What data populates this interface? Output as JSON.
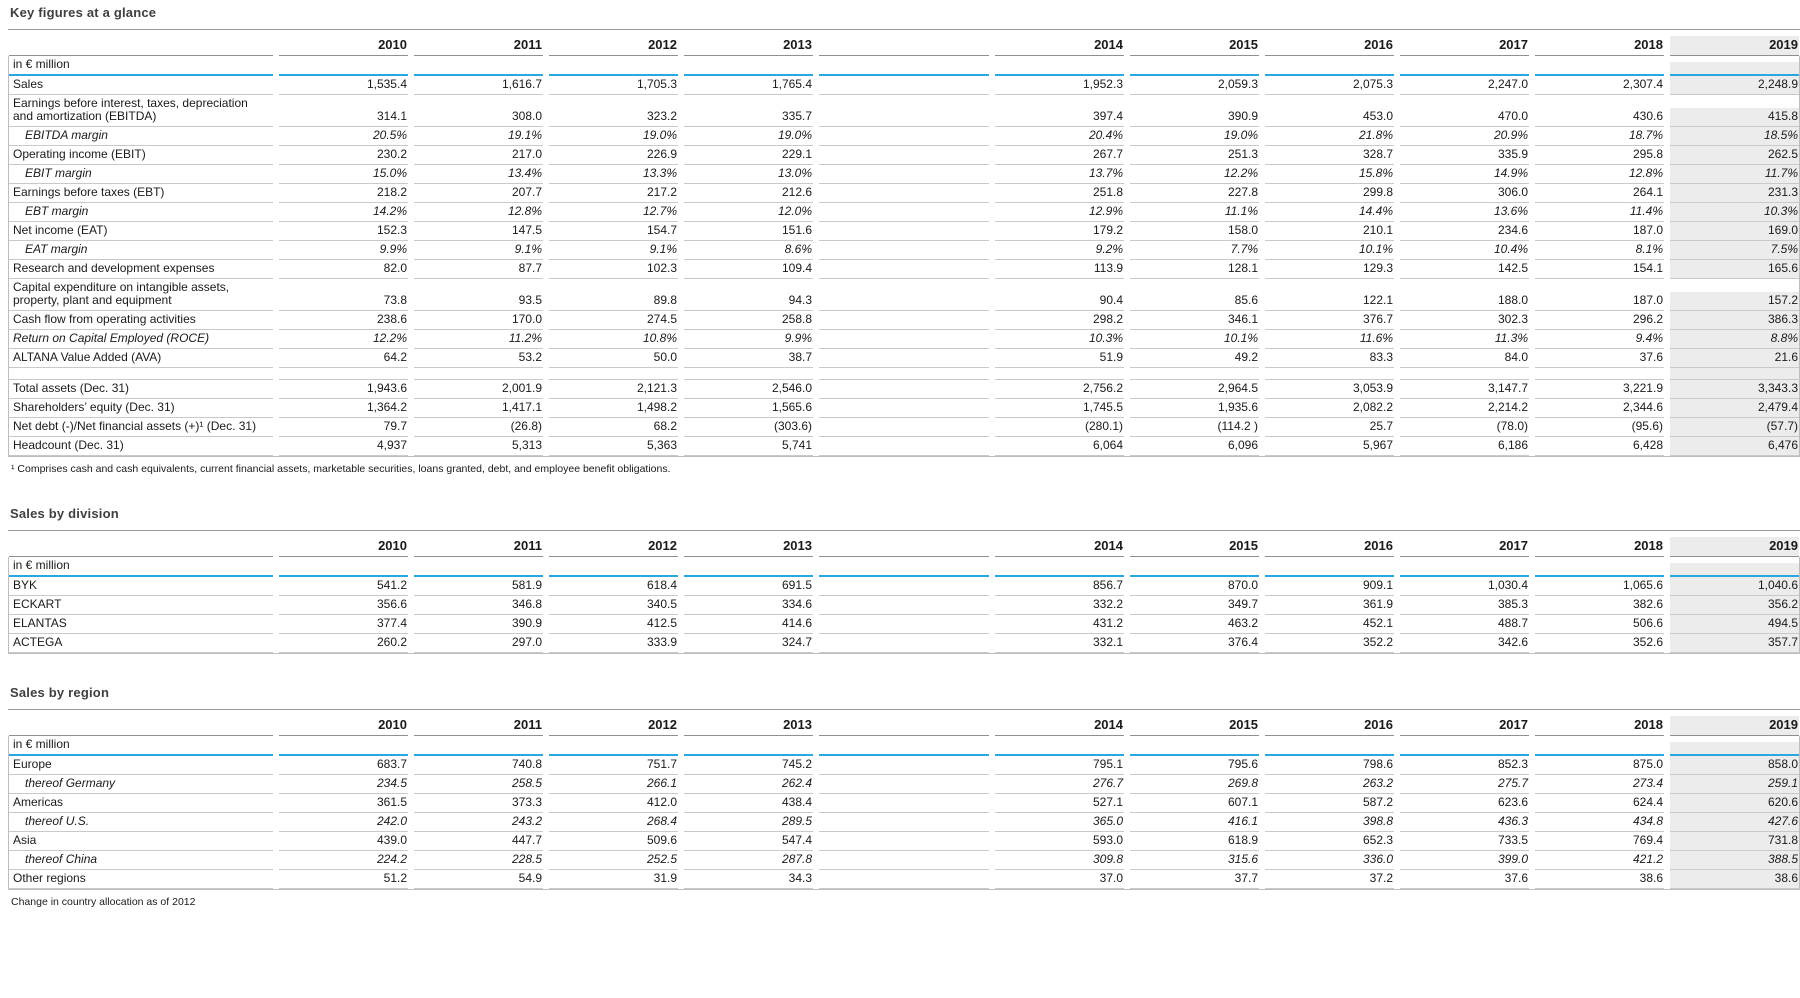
{
  "tables": {
    "key_figures": {
      "title": "Key figures at a glance",
      "unit_label": "in € million",
      "years": [
        "2010",
        "2011",
        "2012",
        "2013",
        "2014",
        "2015",
        "2016",
        "2017",
        "2018",
        "2019"
      ],
      "rows": [
        {
          "label": "Sales",
          "style": "normal",
          "values": [
            "1,535.4",
            "1,616.7",
            "1,705.3",
            "1,765.4",
            "1,952.3",
            "2,059.3",
            "2,075.3",
            "2,247.0",
            "2,307.4",
            "2,248.9"
          ]
        },
        {
          "label": "Earnings before interest, taxes, depreciation\nand amortization (EBITDA)",
          "style": "normal",
          "values": [
            "314.1",
            "308.0",
            "323.2",
            "335.7",
            "397.4",
            "390.9",
            "453.0",
            "470.0",
            "430.6",
            "415.8"
          ]
        },
        {
          "label": "EBITDA margin",
          "style": "margin",
          "values": [
            "20.5%",
            "19.1%",
            "19.0%",
            "19.0%",
            "20.4%",
            "19.0%",
            "21.8%",
            "20.9%",
            "18.7%",
            "18.5%"
          ]
        },
        {
          "label": "Operating income (EBIT)",
          "style": "normal",
          "values": [
            "230.2",
            "217.0",
            "226.9",
            "229.1",
            "267.7",
            "251.3",
            "328.7",
            "335.9",
            "295.8",
            "262.5"
          ]
        },
        {
          "label": "EBIT margin",
          "style": "margin",
          "values": [
            "15.0%",
            "13.4%",
            "13.3%",
            "13.0%",
            "13.7%",
            "12.2%",
            "15.8%",
            "14.9%",
            "12.8%",
            "11.7%"
          ]
        },
        {
          "label": "Earnings before taxes (EBT)",
          "style": "normal",
          "values": [
            "218.2",
            "207.7",
            "217.2",
            "212.6",
            "251.8",
            "227.8",
            "299.8",
            "306.0",
            "264.1",
            "231.3"
          ]
        },
        {
          "label": "EBT margin",
          "style": "margin",
          "values": [
            "14.2%",
            "12.8%",
            "12.7%",
            "12.0%",
            "12.9%",
            "11.1%",
            "14.4%",
            "13.6%",
            "11.4%",
            "10.3%"
          ]
        },
        {
          "label": "Net income (EAT)",
          "style": "normal",
          "values": [
            "152.3",
            "147.5",
            "154.7",
            "151.6",
            "179.2",
            "158.0",
            "210.1",
            "234.6",
            "187.0",
            "169.0"
          ]
        },
        {
          "label": "EAT margin",
          "style": "margin",
          "values": [
            "9.9%",
            "9.1%",
            "9.1%",
            "8.6%",
            "9.2%",
            "7.7%",
            "10.1%",
            "10.4%",
            "8.1%",
            "7.5%"
          ]
        },
        {
          "label": "Research and development expenses",
          "style": "normal",
          "values": [
            "82.0",
            "87.7",
            "102.3",
            "109.4",
            "113.9",
            "128.1",
            "129.3",
            "142.5",
            "154.1",
            "165.6"
          ]
        },
        {
          "label": "Capital expenditure on intangible assets,\nproperty, plant and equipment",
          "style": "normal",
          "values": [
            "73.8",
            "93.5",
            "89.8",
            "94.3",
            "90.4",
            "85.6",
            "122.1",
            "188.0",
            "187.0",
            "157.2"
          ]
        },
        {
          "label": "Cash flow from operating activities",
          "style": "normal",
          "values": [
            "238.6",
            "170.0",
            "274.5",
            "258.8",
            "298.2",
            "346.1",
            "376.7",
            "302.3",
            "296.2",
            "386.3"
          ]
        },
        {
          "label": "Return on Capital Employed (ROCE)",
          "style": "italic",
          "values": [
            "12.2%",
            "11.2%",
            "10.8%",
            "9.9%",
            "10.3%",
            "10.1%",
            "11.6%",
            "11.3%",
            "9.4%",
            "8.8%"
          ]
        },
        {
          "label": "ALTANA Value Added (AVA)",
          "style": "normal",
          "values": [
            "64.2",
            "53.2",
            "50.0",
            "38.7",
            "51.9",
            "49.2",
            "83.3",
            "84.0",
            "37.6",
            "21.6"
          ]
        },
        {
          "spacer": true
        },
        {
          "label": "Total assets (Dec. 31)",
          "style": "normal",
          "values": [
            "1,943.6",
            "2,001.9",
            "2,121.3",
            "2,546.0",
            "2,756.2",
            "2,964.5",
            "3,053.9",
            "3,147.7",
            "3,221.9",
            "3,343.3"
          ]
        },
        {
          "label": "Shareholders’ equity (Dec. 31)",
          "style": "normal",
          "values": [
            "1,364.2",
            "1,417.1",
            "1,498.2",
            "1,565.6",
            "1,745.5",
            "1,935.6",
            "2,082.2",
            "2,214.2",
            "2,344.6",
            "2,479.4"
          ]
        },
        {
          "label": "Net debt (-)/Net financial assets (+)¹ (Dec. 31)",
          "style": "normal",
          "values": [
            "79.7",
            "(26.8)",
            "68.2",
            "(303.6)",
            "(280.1)",
            "(114.2 )",
            "25.7",
            "(78.0)",
            "(95.6)",
            "(57.7)"
          ]
        },
        {
          "label": "Headcount (Dec. 31)",
          "style": "normal",
          "values": [
            "4,937",
            "5,313",
            "5,363",
            "5,741",
            "6,064",
            "6,096",
            "5,967",
            "6,186",
            "6,428",
            "6,476"
          ]
        }
      ],
      "footnote": "¹ Comprises cash and cash equivalents, current financial assets, marketable securities, loans granted, debt, and employee benefit obligations."
    },
    "sales_by_division": {
      "title": "Sales by division",
      "unit_label": "in € million",
      "years": [
        "2010",
        "2011",
        "2012",
        "2013",
        "2014",
        "2015",
        "2016",
        "2017",
        "2018",
        "2019"
      ],
      "rows": [
        {
          "label": "BYK",
          "style": "normal",
          "values": [
            "541.2",
            "581.9",
            "618.4",
            "691.5",
            "856.7",
            "870.0",
            "909.1",
            "1,030.4",
            "1,065.6",
            "1,040.6"
          ]
        },
        {
          "label": "ECKART",
          "style": "normal",
          "values": [
            "356.6",
            "346.8",
            "340.5",
            "334.6",
            "332.2",
            "349.7",
            "361.9",
            "385.3",
            "382.6",
            "356.2"
          ]
        },
        {
          "label": "ELANTAS",
          "style": "normal",
          "values": [
            "377.4",
            "390.9",
            "412.5",
            "414.6",
            "431.2",
            "463.2",
            "452.1",
            "488.7",
            "506.6",
            "494.5"
          ]
        },
        {
          "label": "ACTEGA",
          "style": "normal",
          "values": [
            "260.2",
            "297.0",
            "333.9",
            "324.7",
            "332.1",
            "376.4",
            "352.2",
            "342.6",
            "352.6",
            "357.7"
          ]
        }
      ]
    },
    "sales_by_region": {
      "title": "Sales by region",
      "unit_label": "in € million",
      "years": [
        "2010",
        "2011",
        "2012",
        "2013",
        "2014",
        "2015",
        "2016",
        "2017",
        "2018",
        "2019"
      ],
      "rows": [
        {
          "label": "Europe",
          "style": "normal",
          "values": [
            "683.7",
            "740.8",
            "751.7",
            "745.2",
            "795.1",
            "795.6",
            "798.6",
            "852.3",
            "875.0",
            "858.0"
          ]
        },
        {
          "label": "thereof Germany",
          "style": "thereof",
          "values": [
            "234.5",
            "258.5",
            "266.1",
            "262.4",
            "276.7",
            "269.8",
            "263.2",
            "275.7",
            "273.4",
            "259.1"
          ]
        },
        {
          "label": "Americas",
          "style": "normal",
          "values": [
            "361.5",
            "373.3",
            "412.0",
            "438.4",
            "527.1",
            "607.1",
            "587.2",
            "623.6",
            "624.4",
            "620.6"
          ]
        },
        {
          "label": "thereof U.S.",
          "style": "thereof",
          "values": [
            "242.0",
            "243.2",
            "268.4",
            "289.5",
            "365.0",
            "416.1",
            "398.8",
            "436.3",
            "434.8",
            "427.6"
          ]
        },
        {
          "label": "Asia",
          "style": "normal",
          "values": [
            "439.0",
            "447.7",
            "509.6",
            "547.4",
            "593.0",
            "618.9",
            "652.3",
            "733.5",
            "769.4",
            "731.8"
          ]
        },
        {
          "label": "thereof China",
          "style": "thereof",
          "values": [
            "224.2",
            "228.5",
            "252.5",
            "287.8",
            "309.8",
            "315.6",
            "336.0",
            "399.0",
            "421.2",
            "388.5"
          ]
        },
        {
          "label": "Other regions",
          "style": "normal",
          "values": [
            "51.2",
            "54.9",
            "31.9",
            "34.3",
            "37.0",
            "37.7",
            "37.2",
            "37.6",
            "38.6",
            "38.6"
          ]
        }
      ],
      "footnote": "Change in country allocation as of 2012"
    }
  }
}
